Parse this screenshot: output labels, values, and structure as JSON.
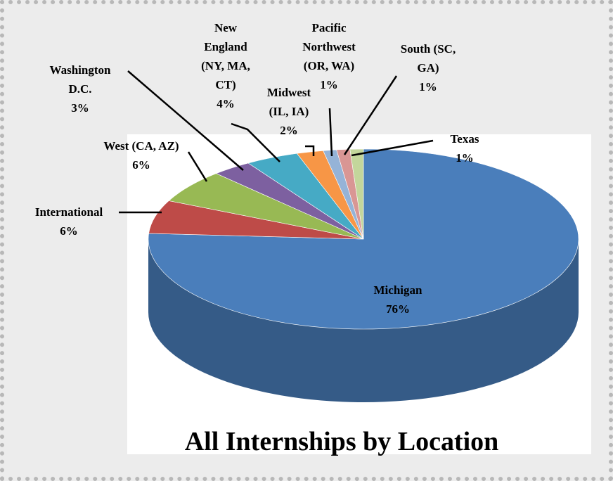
{
  "chart_data": {
    "type": "pie3d",
    "title": "All Internships by Location",
    "categories": [
      "Michigan",
      "International",
      "West (CA, AZ)",
      "Washington D.C.",
      "New England (NY, MA, CT)",
      "Midwest (IL, IA)",
      "Pacific Northwest (OR, WA)",
      "South (SC, GA)",
      "Texas"
    ],
    "values": [
      76,
      6,
      6,
      3,
      4,
      2,
      1,
      1,
      1
    ],
    "value_labels": [
      "76%",
      "6%",
      "6%",
      "3%",
      "4%",
      "2%",
      "1%",
      "1%",
      "1%"
    ],
    "colors": [
      "#4a7ebb",
      "#be4b48",
      "#98b954",
      "#7d60a0",
      "#46aac5",
      "#f79646",
      "#95b3d7",
      "#d99694",
      "#c3d69b"
    ]
  }
}
